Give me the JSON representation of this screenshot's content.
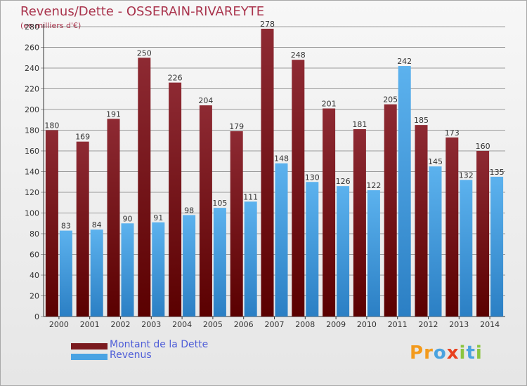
{
  "title": "Revenus/Dette - OSSERAIN-RIVAREYTE",
  "subtitle": "(en milliers d'€)",
  "logo": {
    "text": "Proxiti",
    "letters": [
      "P",
      "r",
      "o",
      "x",
      "i",
      "t",
      "i"
    ],
    "colors": [
      "#f39a1c",
      "#f39a1c",
      "#4aa3df",
      "#e8411f",
      "#8bc53f",
      "#4aa3df",
      "#8bc53f"
    ]
  },
  "colors": {
    "dette": "#7a1a1e",
    "revenus": "#4aa3e3",
    "axis": "#333333",
    "grid": "#444444"
  },
  "legend": [
    {
      "label": "Montant de la Dette",
      "color": "#7a1a1e"
    },
    {
      "label": "Revenus",
      "color": "#4aa3e3"
    }
  ],
  "chart_data": {
    "type": "bar",
    "title": "Revenus/Dette - OSSERAIN-RIVAREYTE",
    "subtitle": "(en milliers d'€)",
    "categories": [
      "2000",
      "2001",
      "2002",
      "2003",
      "2004",
      "2005",
      "2006",
      "2007",
      "2008",
      "2009",
      "2010",
      "2011",
      "2012",
      "2013",
      "2014"
    ],
    "series": [
      {
        "name": "Montant de la Dette",
        "values": [
          180,
          169,
          191,
          250,
          226,
          204,
          179,
          278,
          248,
          201,
          181,
          205,
          185,
          173,
          160
        ]
      },
      {
        "name": "Revenus",
        "values": [
          83,
          84,
          90,
          91,
          98,
          105,
          111,
          148,
          130,
          126,
          122,
          242,
          145,
          132,
          135
        ]
      }
    ],
    "yticks": [
      0,
      20,
      40,
      60,
      80,
      100,
      120,
      140,
      160,
      180,
      200,
      220,
      240,
      260,
      280
    ],
    "ylim": [
      0,
      280
    ],
    "grid": true,
    "legend_position": "bottom-left"
  }
}
